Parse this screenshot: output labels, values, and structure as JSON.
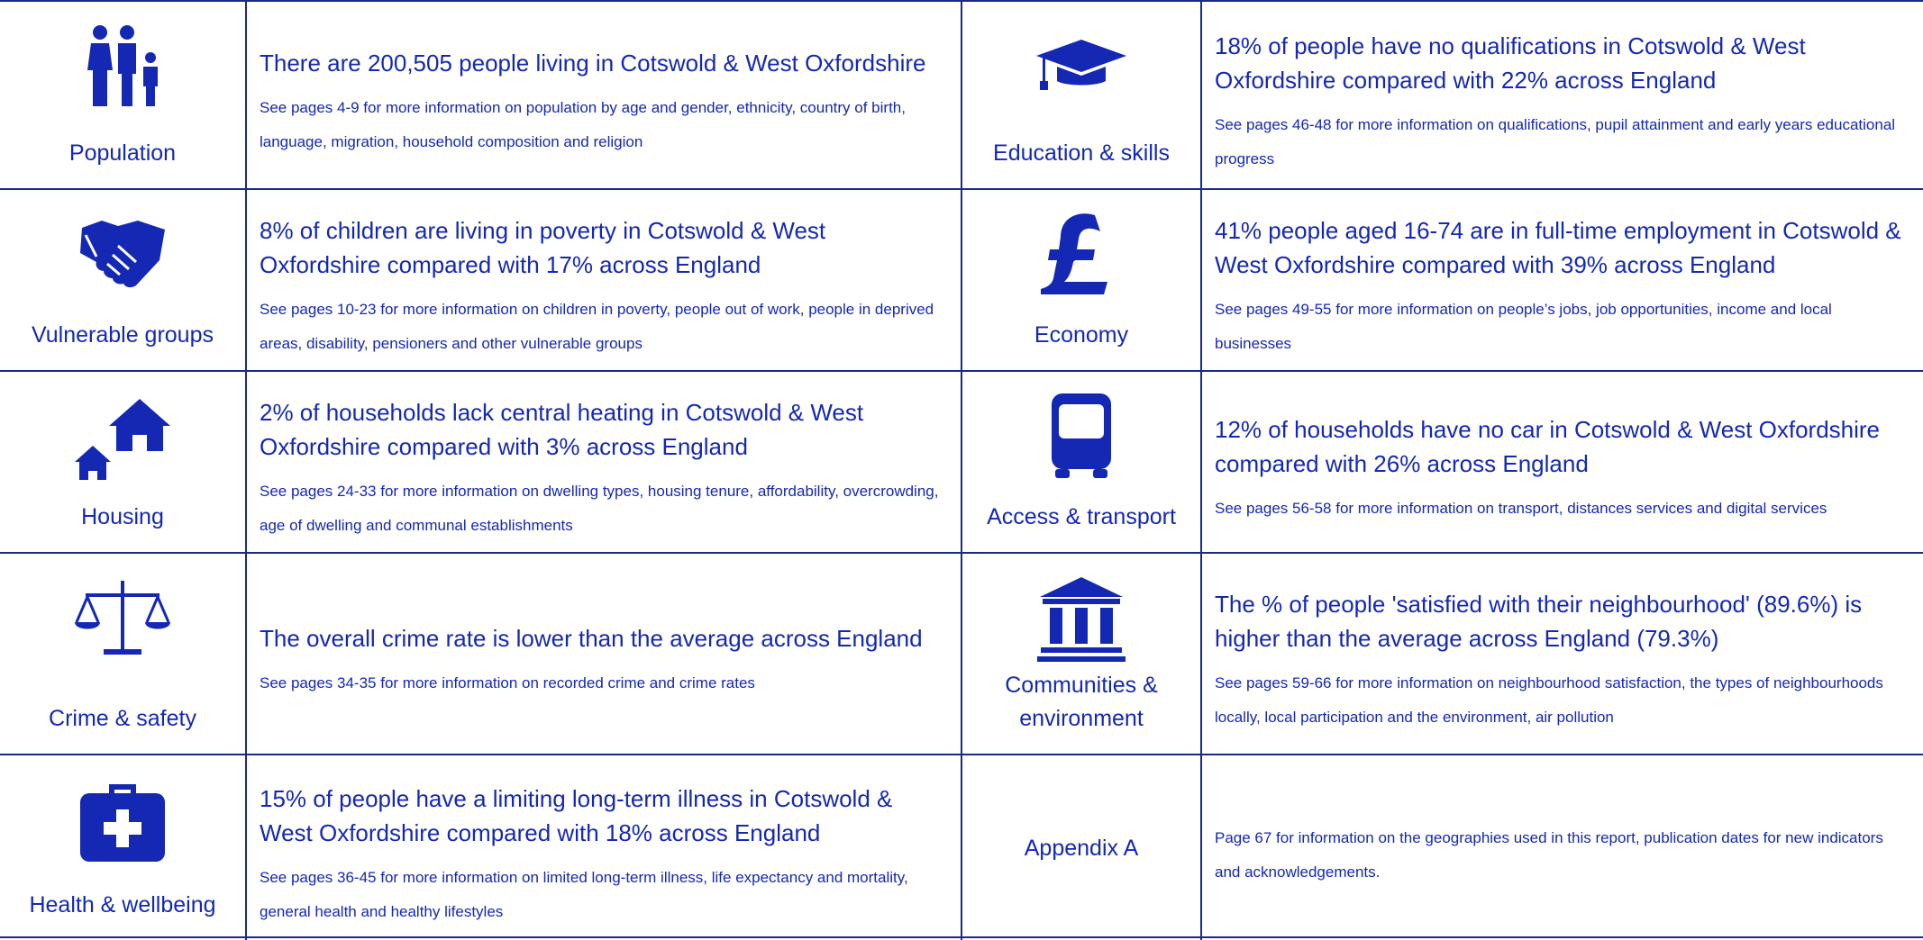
{
  "cells": [
    {
      "topic": "Population",
      "headline": "There are 200,505 people living in Cotswold & West Oxfordshire",
      "detail": "See pages 4-9 for more information on population by age and gender, ethnicity, country of birth, language, migration, household composition and religion"
    },
    {
      "topic": "Education & skills",
      "headline": "18% of people have no qualifications in Cotswold & West Oxfordshire compared with 22% across England",
      "detail": "See pages 46-48 for more information on qualifications, pupil attainment and early years educational progress"
    },
    {
      "topic": "Vulnerable groups",
      "headline": "8% of children are living in poverty in Cotswold & West Oxfordshire compared with 17% across England",
      "detail": "See pages 10-23 for more information on children in poverty, people out of work, people in deprived areas, disability, pensioners and other vulnerable groups"
    },
    {
      "topic": "Economy",
      "headline": "41% people aged 16-74 are in full-time employment in Cotswold & West Oxfordshire compared with 39% across England",
      "detail": "See pages 49-55 for more information on people’s jobs, job opportunities, income and local businesses"
    },
    {
      "topic": "Housing",
      "headline": "2% of households lack central heating in Cotswold & West Oxfordshire compared with 3% across England",
      "detail": "See pages 24-33 for more information on dwelling types, housing tenure, affordability, overcrowding, age of dwelling and communal establishments"
    },
    {
      "topic": "Access & transport",
      "headline": "12% of households have no car in Cotswold & West Oxfordshire compared with 26% across England",
      "detail": "See pages 56-58 for more information on transport, distances services and digital services"
    },
    {
      "topic": "Crime & safety",
      "headline": "The overall crime rate is lower than the average across England",
      "detail": "See pages 34-35 for more information on recorded crime and crime rates"
    },
    {
      "topic": "Communities & environment",
      "headline": "The % of people 'satisfied with their neighbourhood' (89.6%) is higher than the average across England (79.3%)",
      "detail": "See pages 59-66 for more information on neighbourhood satisfaction, the types of neighbourhoods locally, local participation and the environment, air pollution"
    },
    {
      "topic": "Health & wellbeing",
      "headline": "15% of people have a limiting long-term illness in Cotswold & West Oxfordshire compared with 18% across England",
      "detail": "See pages 36-45 for more information on limited long-term illness, life expectancy and mortality, general health and healthy lifestyles"
    },
    {
      "topic": "Appendix A",
      "detail": "Page 67 for information on the geographies used in this report, publication dates for new indicators and acknowledgements."
    }
  ]
}
